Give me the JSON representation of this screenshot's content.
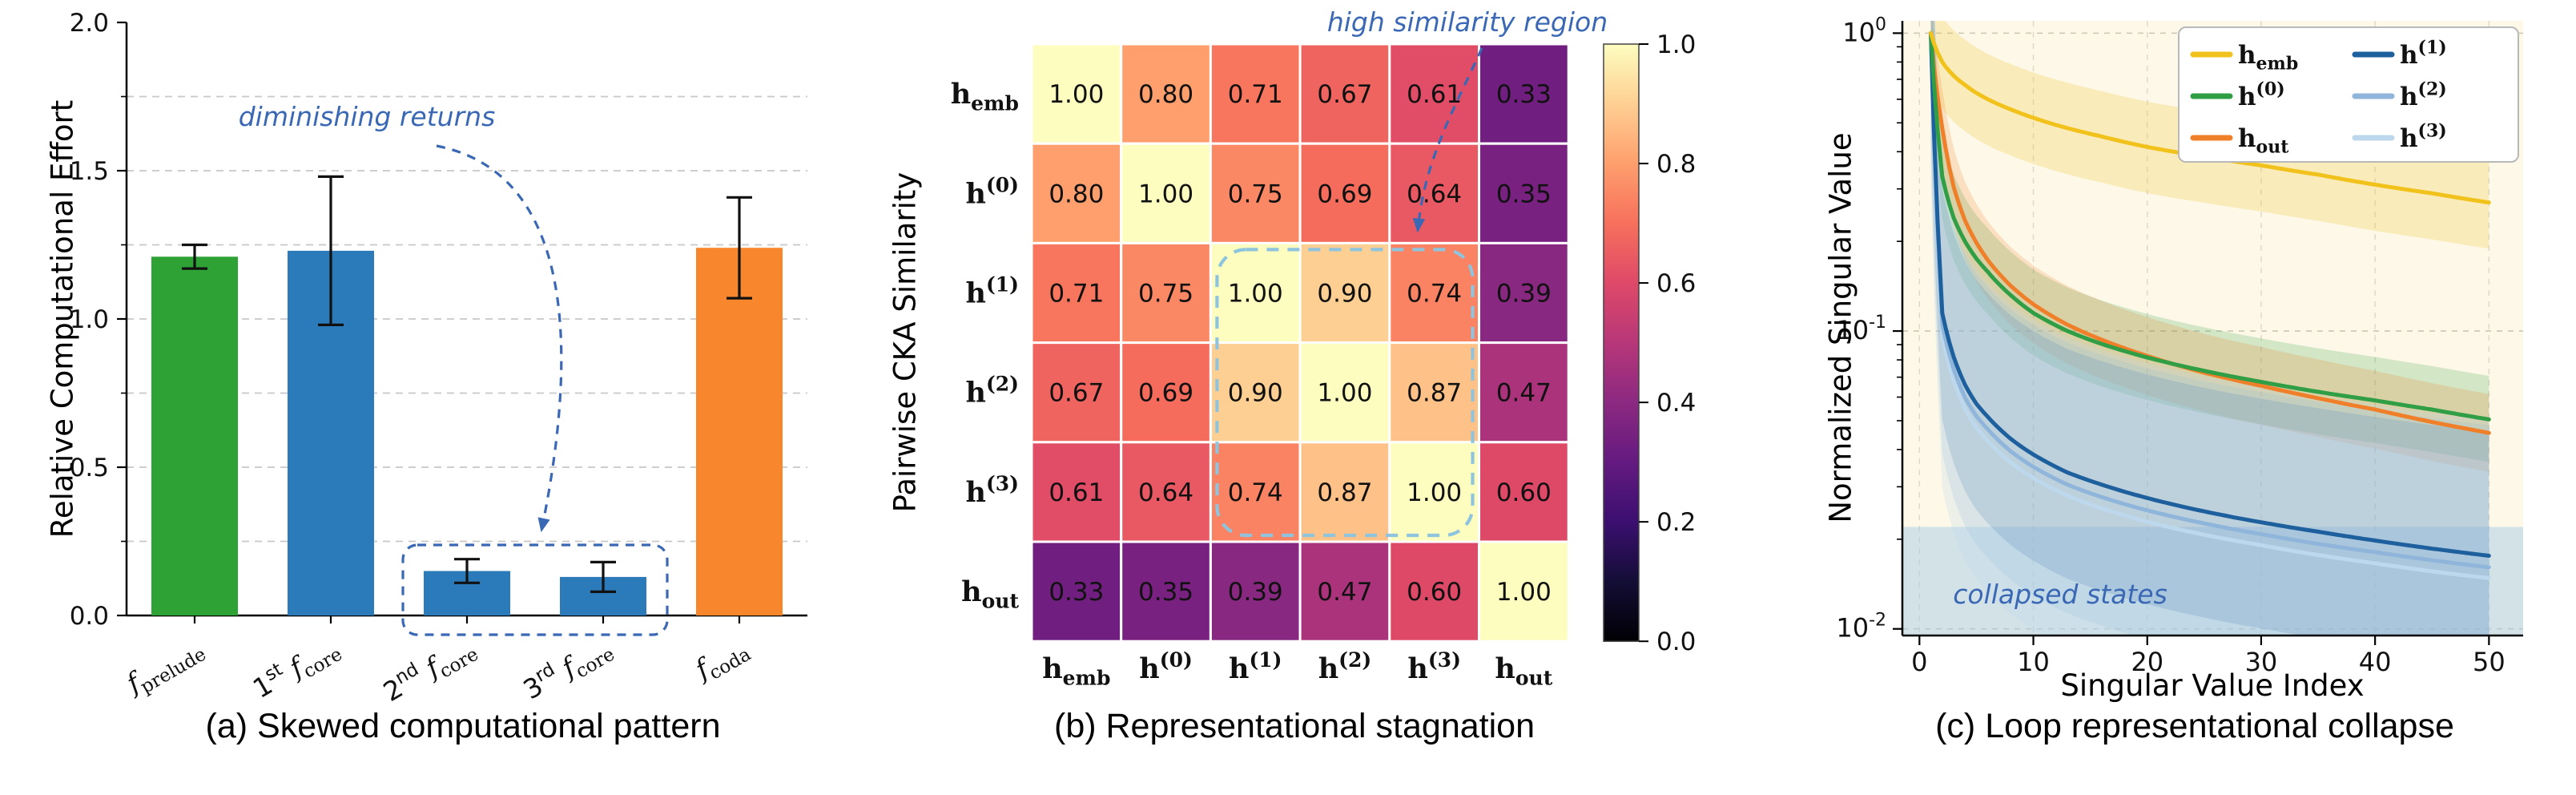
{
  "figure": {
    "background": "#ffffff",
    "annotation_color": "#3a68b5",
    "highlight_box_color_a": "#3a68b5",
    "highlight_box_color_b": "#8ec4de"
  },
  "chart_data": [
    {
      "id": "a",
      "type": "bar",
      "title": "(a) Skewed computational pattern",
      "ylabel": "Relative Computational Effort",
      "ylim": [
        0,
        2.0
      ],
      "yticks": [
        0.0,
        0.5,
        1.0,
        1.5,
        2.0
      ],
      "grid": {
        "axis": "y",
        "style": "dashed",
        "step": 0.25
      },
      "categories": [
        "f_prelude",
        "1st f_core",
        "2nd f_core",
        "3rd f_core",
        "f_coda"
      ],
      "values": [
        1.21,
        1.23,
        0.15,
        0.13,
        1.24
      ],
      "errors": [
        0.04,
        0.25,
        0.04,
        0.05,
        0.17
      ],
      "bar_colors": [
        "#2fa236",
        "#2b7bba",
        "#2b7bba",
        "#2b7bba",
        "#f8862d"
      ],
      "annotation": {
        "text": "diminishing returns",
        "highlight_bars": [
          "2nd f_core",
          "3rd f_core"
        ]
      }
    },
    {
      "id": "b",
      "type": "heatmap",
      "title": "(b) Representational stagnation",
      "ylabel": "Pairwise CKA Similarity",
      "labels": [
        "h_emb",
        "h^(0)",
        "h^(1)",
        "h^(2)",
        "h^(3)",
        "h_out"
      ],
      "matrix": [
        [
          1.0,
          0.8,
          0.71,
          0.67,
          0.61,
          0.33
        ],
        [
          0.8,
          1.0,
          0.75,
          0.69,
          0.64,
          0.35
        ],
        [
          0.71,
          0.75,
          1.0,
          0.9,
          0.74,
          0.39
        ],
        [
          0.67,
          0.69,
          0.9,
          1.0,
          0.87,
          0.47
        ],
        [
          0.61,
          0.64,
          0.74,
          0.87,
          1.0,
          0.6
        ],
        [
          0.33,
          0.35,
          0.39,
          0.47,
          0.6,
          1.0
        ]
      ],
      "vmin": 0.0,
      "vmax": 1.0,
      "colormap": "magma",
      "colorbar_ticks": [
        0.0,
        0.2,
        0.4,
        0.6,
        0.8,
        1.0
      ],
      "annotation": {
        "text": "high similarity region",
        "region": {
          "rows": [
            2,
            4
          ],
          "cols": [
            2,
            4
          ]
        }
      }
    },
    {
      "id": "c",
      "type": "line",
      "title": "(c) Loop representational collapse",
      "xlabel": "Singular Value Index",
      "ylabel": "Normalized Singular Value",
      "yscale": "log",
      "xlim": [
        -1.5,
        53
      ],
      "ylim": [
        0.0095,
        1.1
      ],
      "xticks": [
        0,
        10,
        20,
        30,
        40,
        50
      ],
      "yticks": [
        {
          "value": 1.0,
          "label": "10^0"
        },
        {
          "value": 0.1,
          "label": "10^-1"
        },
        {
          "value": 0.01,
          "label": "10^-2"
        }
      ],
      "plot_bg": "#fdf8e7",
      "x": [
        1,
        2,
        3,
        4,
        5,
        6,
        8,
        10,
        13,
        16,
        20,
        25,
        30,
        35,
        40,
        45,
        50
      ],
      "series": [
        {
          "name": "h_emb",
          "color": "#f2c21c",
          "band_opacity": 0.22,
          "band": [
            0.7,
            1.42
          ],
          "values": [
            1.0,
            0.8,
            0.72,
            0.67,
            0.63,
            0.6,
            0.555,
            0.52,
            0.48,
            0.45,
            0.415,
            0.385,
            0.36,
            0.335,
            0.31,
            0.29,
            0.27
          ]
        },
        {
          "name": "h^(0)",
          "color": "#2f9e44",
          "band_opacity": 0.2,
          "band": [
            0.72,
            1.4
          ],
          "values": [
            1.0,
            0.33,
            0.24,
            0.2,
            0.175,
            0.158,
            0.132,
            0.115,
            0.1,
            0.0905,
            0.0815,
            0.0735,
            0.0675,
            0.0625,
            0.0585,
            0.0545,
            0.0505
          ]
        },
        {
          "name": "h_out",
          "color": "#f07f2a",
          "band_opacity": 0.2,
          "band": [
            0.74,
            1.35
          ],
          "values": [
            1.0,
            0.48,
            0.305,
            0.235,
            0.198,
            0.173,
            0.142,
            0.123,
            0.105,
            0.0935,
            0.0825,
            0.0725,
            0.0655,
            0.0595,
            0.0545,
            0.0495,
            0.0455
          ]
        },
        {
          "name": "h^(1)",
          "color": "#1e5f9e",
          "band_opacity": 0.22,
          "band": [
            0.44,
            2.6
          ],
          "values": [
            1.0,
            0.115,
            0.082,
            0.066,
            0.057,
            0.0515,
            0.0435,
            0.0385,
            0.0335,
            0.0305,
            0.0275,
            0.0248,
            0.0228,
            0.0212,
            0.0198,
            0.0186,
            0.0176
          ]
        },
        {
          "name": "h^(2)",
          "color": "#8fb6da",
          "band_opacity": 0.22,
          "band": [
            0.37,
            3.0
          ],
          "values": [
            1.0,
            0.105,
            0.0745,
            0.0598,
            0.0518,
            0.0468,
            0.0395,
            0.035,
            0.0305,
            0.0277,
            0.025,
            0.0226,
            0.0208,
            0.0193,
            0.0181,
            0.017,
            0.0161
          ]
        },
        {
          "name": "h^(3)",
          "color": "#bdd8ec",
          "band_opacity": 0.25,
          "band": [
            0.31,
            3.4
          ],
          "values": [
            1.0,
            0.096,
            0.068,
            0.0548,
            0.0474,
            0.0428,
            0.0362,
            0.0321,
            0.028,
            0.0254,
            0.0229,
            0.0207,
            0.0191,
            0.0177,
            0.0166,
            0.0156,
            0.0148
          ]
        }
      ],
      "legend": {
        "columns": [
          [
            "h_emb",
            "h^(0)",
            "h_out"
          ],
          [
            "h^(1)",
            "h^(2)",
            "h^(3)"
          ]
        ]
      },
      "annotation": {
        "text": "collapsed states",
        "band_y": [
          0.0095,
          0.022
        ],
        "band_color": "#a9cbe8"
      }
    }
  ]
}
